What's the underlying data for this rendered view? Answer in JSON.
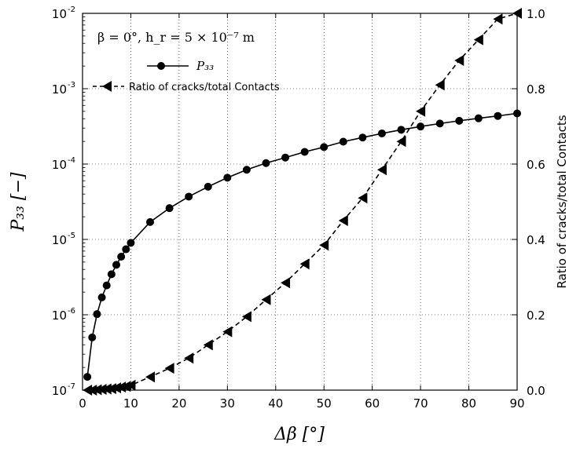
{
  "chart_data": {
    "type": "line",
    "annotation": "β = 0°, h_r = 5 × 10⁻⁷ m",
    "xlabel": "Δβ [°]",
    "xlim": [
      0,
      90
    ],
    "x_ticks": [
      0,
      10,
      20,
      30,
      40,
      50,
      60,
      70,
      80,
      90
    ],
    "y_left": {
      "label": "P₃₃ [−]",
      "scale": "log",
      "lim": [
        1e-07,
        0.01
      ],
      "tick_exponents": [
        -7,
        -6,
        -5,
        -4,
        -3,
        -2
      ],
      "tick_base": "10"
    },
    "y_right": {
      "label": "Ratio of cracks/total Contacts",
      "scale": "linear",
      "lim": [
        0.0,
        1.0
      ],
      "ticks": [
        "0.0",
        "0.2",
        "0.4",
        "0.6",
        "0.8",
        "1.0"
      ]
    },
    "legend": {
      "placement": "top-left"
    },
    "series": [
      {
        "name": "P₃₃",
        "axis": "left",
        "marker": "circle",
        "line": "solid",
        "x": [
          1,
          2,
          3,
          4,
          5,
          6,
          7,
          8,
          9,
          10,
          14,
          18,
          22,
          26,
          30,
          34,
          38,
          42,
          46,
          50,
          54,
          58,
          62,
          66,
          70,
          74,
          78,
          82,
          86,
          90
        ],
        "y": [
          1.5e-07,
          5e-07,
          1.02e-06,
          1.7e-06,
          2.45e-06,
          3.45e-06,
          4.6e-06,
          5.9e-06,
          7.4e-06,
          9e-06,
          1.7e-05,
          2.6e-05,
          3.7e-05,
          5e-05,
          6.6e-05,
          8.4e-05,
          0.000103,
          0.000122,
          0.000145,
          0.000168,
          0.000198,
          0.000225,
          0.000255,
          0.000285,
          0.000315,
          0.000345,
          0.000375,
          0.000405,
          0.000435,
          0.00047
        ]
      },
      {
        "name": "Ratio of cracks/total Contacts",
        "axis": "right",
        "marker": "triangle-left",
        "line": "dashed",
        "x": [
          1,
          2,
          3,
          4,
          5,
          6,
          7,
          8,
          9,
          10,
          14,
          18,
          22,
          26,
          30,
          34,
          38,
          42,
          46,
          50,
          54,
          58,
          62,
          66,
          70,
          74,
          78,
          82,
          86,
          90
        ],
        "y": [
          0.0,
          0.0,
          0.001,
          0.002,
          0.003,
          0.004,
          0.006,
          0.008,
          0.01,
          0.013,
          0.035,
          0.058,
          0.085,
          0.12,
          0.155,
          0.195,
          0.24,
          0.285,
          0.335,
          0.385,
          0.45,
          0.51,
          0.585,
          0.66,
          0.74,
          0.81,
          0.875,
          0.93,
          0.985,
          1.0
        ]
      }
    ]
  }
}
